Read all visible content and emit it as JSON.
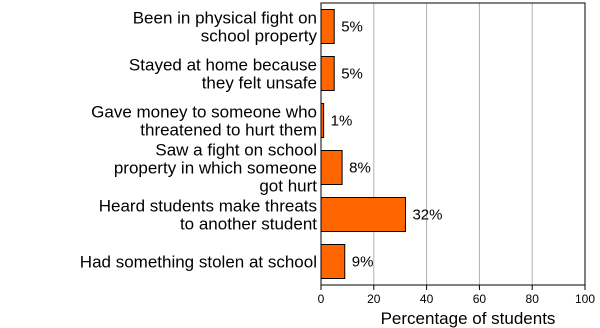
{
  "chart_data": {
    "type": "bar",
    "orientation": "horizontal",
    "categories": [
      [
        "Been in physical fight on",
        "school property"
      ],
      [
        "Stayed at home because",
        "they felt unsafe"
      ],
      [
        "Gave money to someone who",
        "threatened to hurt them"
      ],
      [
        "Saw a fight on school",
        "property in which someone",
        "got hurt"
      ],
      [
        "Heard students make threats",
        "to another student"
      ],
      [
        "Had something stolen at school"
      ]
    ],
    "values": [
      5,
      5,
      1,
      8,
      32,
      9
    ],
    "value_labels": [
      "5%",
      "5%",
      "1%",
      "8%",
      "32%",
      "9%"
    ],
    "xlabel": "Percentage of students",
    "xlim": [
      0,
      100
    ],
    "xticks": [
      "0",
      "20",
      "40",
      "60",
      "80",
      "100"
    ],
    "grid": "vertical",
    "colors": {
      "bar_fill": "#ff6600",
      "bar_stroke": "#000000",
      "grid": "#b0b0b0"
    }
  }
}
